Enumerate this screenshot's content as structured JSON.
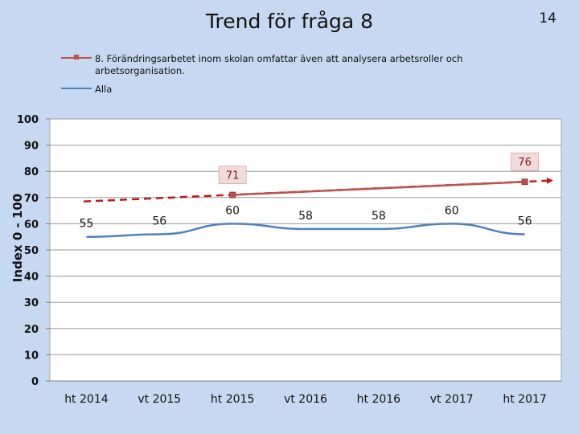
{
  "page": {
    "title": "Trend för fråga 8",
    "page_number": "14"
  },
  "chart_data": {
    "type": "line",
    "title": "Trend för fråga 8",
    "ylabel": "Index 0 - 100",
    "xlabel": "",
    "ylim": [
      0,
      100
    ],
    "yticks": [
      0,
      10,
      20,
      30,
      40,
      50,
      60,
      70,
      80,
      90,
      100
    ],
    "categories": [
      "ht 2014",
      "vt 2015",
      "ht 2015",
      "vt 2016",
      "ht 2016",
      "vt 2017",
      "ht 2017"
    ],
    "grid": true,
    "legend_position": "top",
    "series": [
      {
        "name": "8.   Förändringsarbetet inom skolan omfattar även att analysera arbetsroller och arbetsorganisation.",
        "color": "#c0504d",
        "values": [
          null,
          null,
          71,
          null,
          null,
          null,
          76
        ],
        "labels": [
          "",
          "",
          "71",
          "",
          "",
          "",
          "76"
        ],
        "trendline": {
          "start": 68.5,
          "end": 76.5,
          "style": "dashed",
          "color": "#c0191a"
        }
      },
      {
        "name": "Alla",
        "color": "#4f81bd",
        "values": [
          55,
          56,
          60,
          58,
          58,
          60,
          56
        ],
        "labels": [
          "55",
          "56",
          "60",
          "58",
          "58",
          "60",
          "56"
        ]
      }
    ]
  }
}
